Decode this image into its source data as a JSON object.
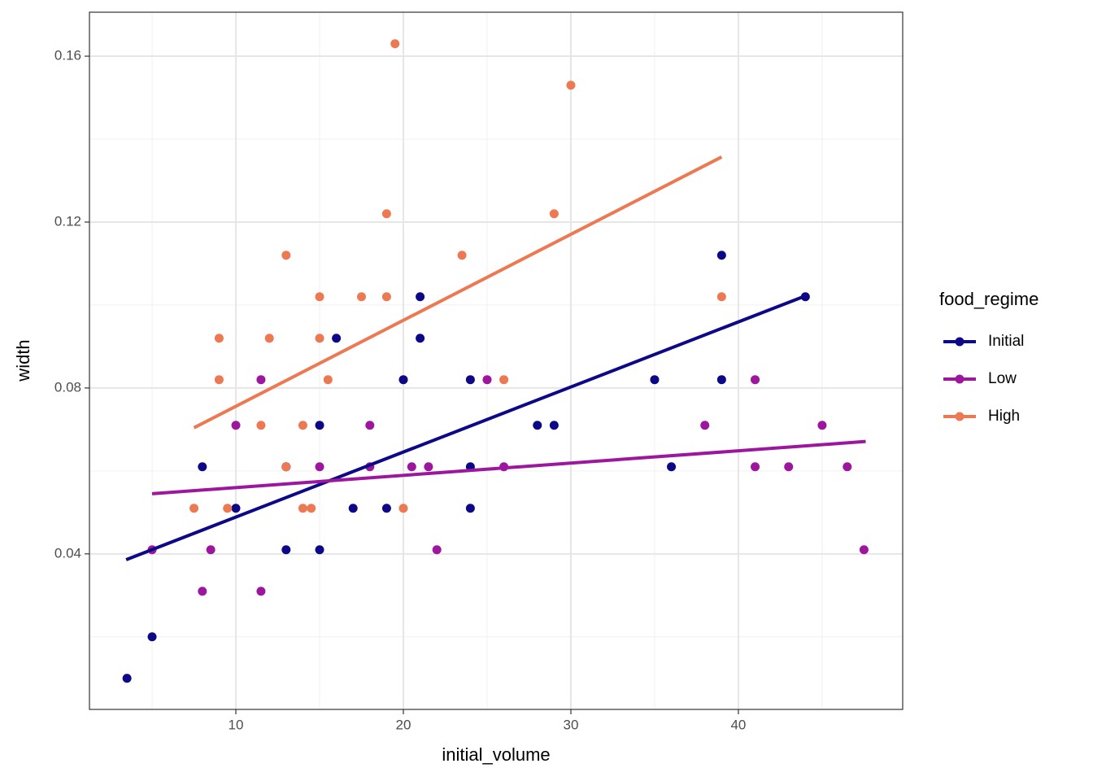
{
  "chart_data": {
    "type": "scatter",
    "x_label": "initial_volume",
    "y_label": "width",
    "legend_title": "food_regime",
    "xlim": [
      1.26,
      49.81
    ],
    "ylim": [
      0.0025,
      0.1706
    ],
    "xticks": [
      10,
      20,
      30,
      40
    ],
    "yticks": [
      0.04,
      0.08,
      0.12,
      0.16
    ],
    "x_minor_ticks": [
      5,
      15,
      25,
      35,
      45
    ],
    "y_minor_ticks": [
      0.02,
      0.06,
      0.1,
      0.14
    ],
    "grid": true,
    "legend": "right",
    "series": [
      {
        "name": "Initial",
        "color": "#0d0887",
        "x": [
          3.5,
          5,
          8,
          10,
          13,
          13,
          15,
          15,
          16,
          17,
          19,
          20,
          21,
          21,
          24,
          24,
          24,
          28,
          29,
          35,
          36,
          39,
          39,
          44
        ],
        "values": [
          0.01,
          0.02,
          0.061,
          0.051,
          0.061,
          0.041,
          0.071,
          0.041,
          0.092,
          0.051,
          0.051,
          0.082,
          0.102,
          0.092,
          0.082,
          0.061,
          0.051,
          0.071,
          0.071,
          0.082,
          0.061,
          0.112,
          0.082,
          0.102
        ],
        "fit": {
          "x": [
            3.45,
            44
          ],
          "y": [
            0.0386,
            0.1022
          ]
        }
      },
      {
        "name": "Low",
        "color": "#9c179e",
        "x": [
          5,
          8,
          8.5,
          10,
          11.5,
          11.5,
          13,
          15,
          18,
          18,
          20.5,
          21.5,
          22,
          25,
          26,
          38,
          41,
          41,
          43,
          45,
          46.5,
          47.5
        ],
        "values": [
          0.041,
          0.031,
          0.041,
          0.071,
          0.082,
          0.031,
          0.061,
          0.061,
          0.071,
          0.061,
          0.061,
          0.061,
          0.041,
          0.082,
          0.061,
          0.071,
          0.082,
          0.061,
          0.061,
          0.071,
          0.061,
          0.041
        ],
        "fit": {
          "x": [
            5,
            47.6
          ],
          "y": [
            0.0545,
            0.0671
          ]
        }
      },
      {
        "name": "High",
        "color": "#ed7953",
        "x": [
          7.5,
          9,
          9,
          9.5,
          11.5,
          12,
          13,
          13,
          14,
          14,
          14.5,
          15,
          15,
          15.5,
          17.5,
          19,
          19,
          19.5,
          20,
          23.5,
          26,
          29,
          30,
          39
        ],
        "values": [
          0.051,
          0.092,
          0.082,
          0.051,
          0.071,
          0.092,
          0.112,
          0.061,
          0.071,
          0.051,
          0.051,
          0.102,
          0.092,
          0.082,
          0.102,
          0.122,
          0.102,
          0.163,
          0.051,
          0.112,
          0.082,
          0.122,
          0.153,
          0.102
        ],
        "fit": {
          "x": [
            7.5,
            39
          ],
          "y": [
            0.0704,
            0.1357
          ]
        }
      }
    ]
  }
}
